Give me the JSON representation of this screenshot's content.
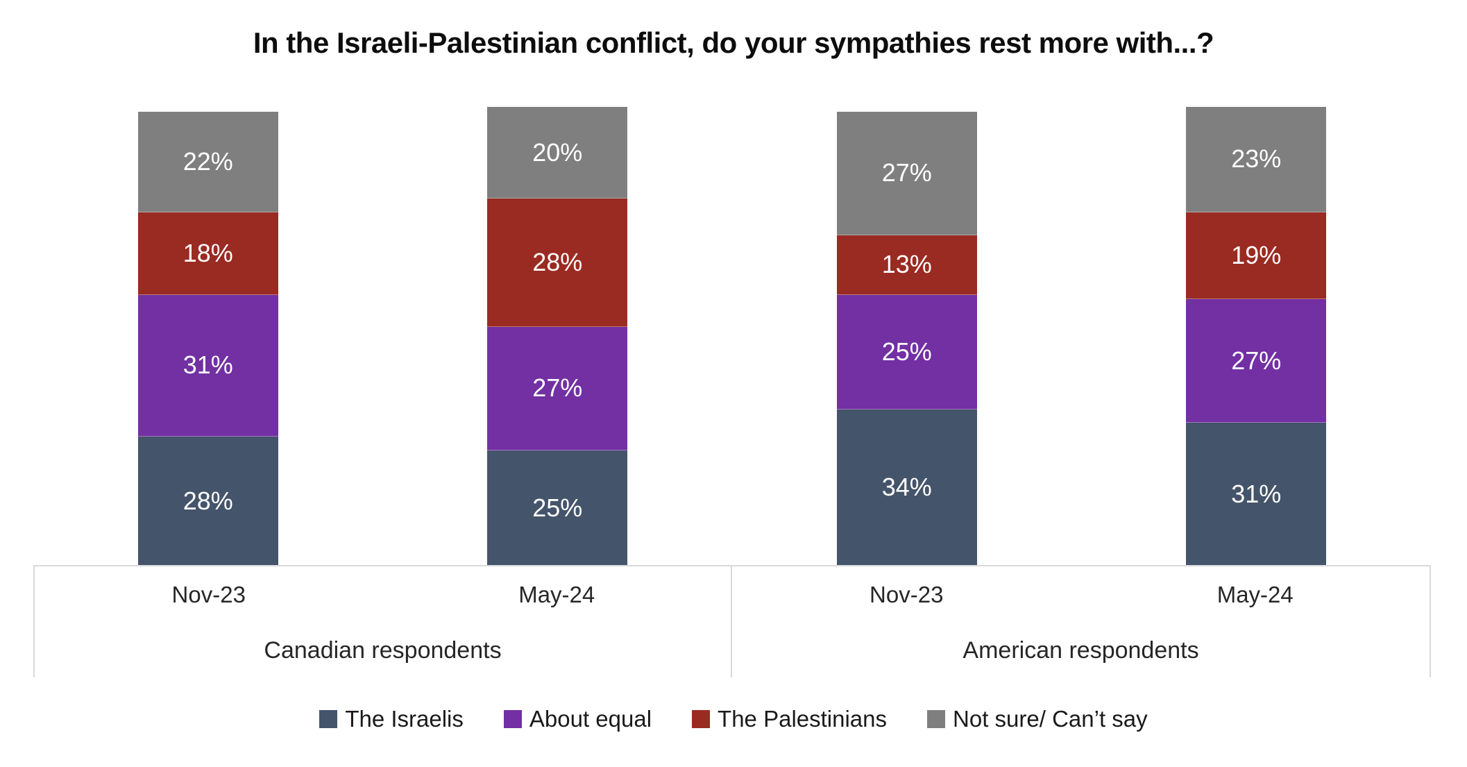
{
  "title": "In the Israeli-Palestinian conflict, do your sympathies rest more with...?",
  "chart_data": {
    "type": "bar",
    "stacked": true,
    "unit": "%",
    "title": "In the Israeli-Palestinian conflict, do your sympathies rest more with...?",
    "categories": [
      "Nov-23",
      "May-24",
      "Nov-23",
      "May-24"
    ],
    "group_labels": [
      "Canadian respondents",
      "American respondents"
    ],
    "series": [
      {
        "name": "The Israelis",
        "color": "#44546A",
        "values": [
          28,
          25,
          34,
          31
        ],
        "labels": [
          "28%",
          "25%",
          "34%",
          "31%"
        ]
      },
      {
        "name": "About equal",
        "color": "#7230A3",
        "values": [
          31,
          27,
          25,
          27
        ],
        "labels": [
          "31%",
          "27%",
          "25%",
          "27%"
        ]
      },
      {
        "name": "The Palestinians",
        "color": "#9A2B22",
        "values": [
          18,
          28,
          13,
          19
        ],
        "labels": [
          "18%",
          "28%",
          "13%",
          "19%"
        ]
      },
      {
        "name": "Not sure/ Can’t say",
        "color": "#7F7F7F",
        "values": [
          22,
          20,
          27,
          23
        ],
        "labels": [
          "22%",
          "20%",
          "27%",
          "23%"
        ]
      }
    ],
    "legend_position": "bottom",
    "ylim": [
      0,
      100
    ],
    "gridlines": false,
    "axis_line_color": "#D9D9D9",
    "data_label_color": "#FFFFFF"
  }
}
